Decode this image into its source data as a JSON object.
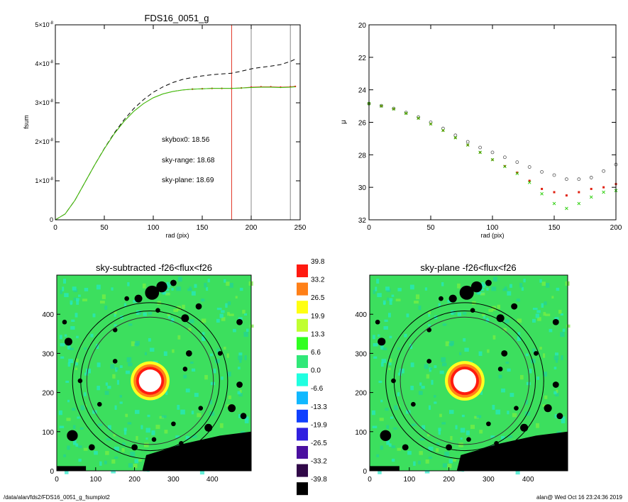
{
  "chart_data": [
    {
      "type": "line",
      "title": "FDS16_0051_g",
      "xlabel": "rad (pix)",
      "ylabel": "fsum",
      "xlim": [
        0,
        250
      ],
      "ylim": [
        0,
        5e-08
      ],
      "xticks": [
        "0",
        "50",
        "100",
        "150",
        "200",
        "250"
      ],
      "yticks": [
        {
          "v": 0,
          "mant": "0",
          "exp": ""
        },
        {
          "v": 1e-08,
          "mant": "1×10",
          "exp": "-8"
        },
        {
          "v": 2e-08,
          "mant": "2×10",
          "exp": "-8"
        },
        {
          "v": 3e-08,
          "mant": "3×10",
          "exp": "-8"
        },
        {
          "v": 4e-08,
          "mant": "4×10",
          "exp": "-8"
        },
        {
          "v": 5e-08,
          "mant": "5×10",
          "exp": "-8"
        }
      ],
      "vlines": [
        {
          "x": 180,
          "color": "#e03020"
        },
        {
          "x": 200,
          "color": "#888888"
        },
        {
          "x": 240,
          "color": "#888888"
        }
      ],
      "annotations": [
        {
          "text": "skybox0: 18.56",
          "color": "#000000"
        },
        {
          "text": "sky-range: 18.68",
          "color": "#e02010"
        },
        {
          "text": "sky-plane: 18.69",
          "color": "#30d010"
        }
      ],
      "series": [
        {
          "style": "dashed",
          "color": "#000000",
          "x": [
            0,
            10,
            20,
            30,
            40,
            50,
            60,
            70,
            80,
            90,
            100,
            110,
            120,
            130,
            140,
            150,
            160,
            170,
            180,
            190,
            200,
            210,
            220,
            230,
            240,
            245
          ],
          "y": [
            0,
            1.5e-09,
            5e-09,
            9.5e-09,
            1.4e-08,
            1.83e-08,
            2.22e-08,
            2.56e-08,
            2.85e-08,
            3.08e-08,
            3.27e-08,
            3.41e-08,
            3.52e-08,
            3.6e-08,
            3.65e-08,
            3.69e-08,
            3.72e-08,
            3.74e-08,
            3.76e-08,
            3.81e-08,
            3.87e-08,
            3.91e-08,
            3.94e-08,
            3.98e-08,
            4.06e-08,
            4.12e-08
          ]
        },
        {
          "style": "solid",
          "color": "#e02010",
          "x": [
            0,
            10,
            20,
            30,
            40,
            50,
            60,
            70,
            80,
            90,
            100,
            110,
            120,
            130,
            140,
            150,
            160,
            170,
            180,
            190,
            200,
            210,
            220,
            230,
            240,
            245
          ],
          "y": [
            0,
            1.5e-09,
            5e-09,
            9.5e-09,
            1.4e-08,
            1.82e-08,
            2.2e-08,
            2.52e-08,
            2.78e-08,
            2.98e-08,
            3.13e-08,
            3.23e-08,
            3.29e-08,
            3.33e-08,
            3.35e-08,
            3.36e-08,
            3.37e-08,
            3.37e-08,
            3.37e-08,
            3.38e-08,
            3.4e-08,
            3.41e-08,
            3.41e-08,
            3.4e-08,
            3.41e-08,
            3.42e-08
          ]
        },
        {
          "style": "solid",
          "color": "#30d010",
          "x": [
            0,
            10,
            20,
            30,
            40,
            50,
            60,
            70,
            80,
            90,
            100,
            110,
            120,
            130,
            140,
            150,
            160,
            170,
            180,
            190,
            200,
            210,
            220,
            230,
            240,
            245
          ],
          "y": [
            0,
            1.5e-09,
            5e-09,
            9.5e-09,
            1.4e-08,
            1.82e-08,
            2.2e-08,
            2.52e-08,
            2.78e-08,
            2.98e-08,
            3.13e-08,
            3.23e-08,
            3.29e-08,
            3.33e-08,
            3.35e-08,
            3.36e-08,
            3.37e-08,
            3.37e-08,
            3.37e-08,
            3.38e-08,
            3.39e-08,
            3.4e-08,
            3.4e-08,
            3.39e-08,
            3.4e-08,
            3.41e-08
          ]
        }
      ]
    },
    {
      "type": "scatter",
      "title": "",
      "xlabel": "rad (pix)",
      "ylabel": "μ",
      "xlim": [
        0,
        200
      ],
      "ylim": [
        20,
        32
      ],
      "y_inverted": true,
      "xticks": [
        "0",
        "50",
        "100",
        "150",
        "200"
      ],
      "yticks": [
        "20",
        "22",
        "24",
        "26",
        "28",
        "30",
        "32"
      ],
      "series": [
        {
          "color": "#000000",
          "marker": "open-circle",
          "x": [
            0,
            10,
            20,
            30,
            40,
            50,
            60,
            70,
            80,
            90,
            100,
            110,
            120,
            130,
            140,
            150,
            160,
            170,
            180,
            190,
            200
          ],
          "y": [
            24.85,
            24.98,
            25.15,
            25.4,
            25.68,
            26.0,
            26.38,
            26.8,
            27.2,
            27.55,
            27.85,
            28.15,
            28.45,
            28.75,
            29.05,
            29.25,
            29.5,
            29.5,
            29.4,
            29.0,
            28.6
          ]
        },
        {
          "color": "#e02010",
          "marker": "square",
          "x": [
            0,
            10,
            20,
            30,
            40,
            50,
            60,
            70,
            80,
            90,
            100,
            110,
            120,
            130,
            140,
            150,
            160,
            170,
            180,
            190,
            200
          ],
          "y": [
            24.85,
            25.0,
            25.18,
            25.45,
            25.75,
            26.1,
            26.5,
            26.95,
            27.4,
            27.85,
            28.3,
            28.7,
            29.1,
            29.6,
            30.1,
            30.3,
            30.5,
            30.3,
            30.1,
            30.0,
            29.8
          ]
        },
        {
          "color": "#30d010",
          "marker": "x",
          "x": [
            0,
            10,
            20,
            30,
            40,
            50,
            60,
            70,
            80,
            90,
            100,
            110,
            120,
            130,
            140,
            150,
            160,
            170,
            180,
            190,
            200
          ],
          "y": [
            24.85,
            25.0,
            25.18,
            25.45,
            25.75,
            26.1,
            26.5,
            26.95,
            27.4,
            27.85,
            28.3,
            28.72,
            29.15,
            29.7,
            30.4,
            31.0,
            31.3,
            31.0,
            30.6,
            30.3,
            30.2
          ]
        }
      ]
    },
    {
      "type": "heatmap",
      "title": "sky-subtracted -f26<flux<f26",
      "xlim": [
        0,
        500
      ],
      "ylim": [
        0,
        500
      ],
      "xticks": [
        "0",
        "100",
        "200",
        "300",
        "400"
      ],
      "yticks": [
        "0",
        "100",
        "200",
        "300",
        "400"
      ]
    },
    {
      "type": "heatmap",
      "title": "sky-plane -f26<flux<f26",
      "xlim": [
        0,
        500
      ],
      "ylim": [
        0,
        500
      ],
      "xticks": [
        "0",
        "100",
        "200",
        "300",
        "400"
      ],
      "yticks": [
        "0",
        "100",
        "200",
        "300",
        "400"
      ]
    }
  ],
  "colorbar": {
    "labels": [
      "39.8",
      "33.2",
      "26.5",
      "19.9",
      "13.3",
      "6.6",
      "0.0",
      "-6.6",
      "-13.3",
      "-19.9",
      "-26.5",
      "-33.2",
      "-39.8"
    ],
    "colors": [
      "#ff1a10",
      "#ff8018",
      "#ffff10",
      "#c0ff30",
      "#30ff20",
      "#30e878",
      "#20ffe0",
      "#10b8ff",
      "#1040ff",
      "#3020e0",
      "#4a10a0",
      "#300848",
      "#000000"
    ]
  },
  "footer": {
    "left": "/data/alan/fds2/FDS16_0051_g_fsumplot2",
    "right": "alan@  Wed Oct 16 23:24:36 2019"
  }
}
